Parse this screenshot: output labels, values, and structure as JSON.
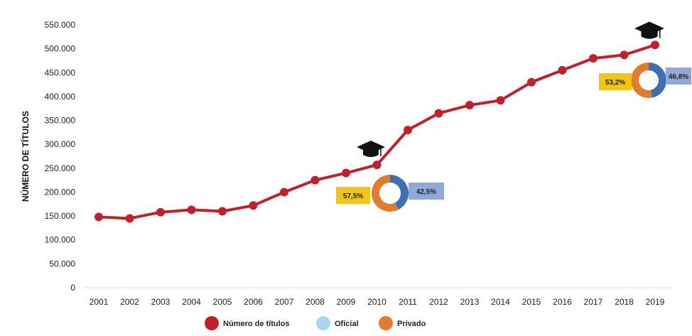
{
  "chart_data": {
    "type": "line",
    "title": "",
    "xlabel": "",
    "ylabel": "NÚMERO DE TÍTULOS",
    "categories": [
      "2001",
      "2002",
      "2003",
      "2004",
      "2005",
      "2006",
      "2007",
      "2008",
      "2009",
      "2010",
      "2011",
      "2012",
      "2013",
      "2014",
      "2015",
      "2016",
      "2017",
      "2018",
      "2019"
    ],
    "series": [
      {
        "name": "Número de títulos",
        "color": "#c0202a",
        "values": [
          148000,
          145000,
          158000,
          163000,
          160000,
          172000,
          200000,
          225000,
          240000,
          257000,
          330000,
          365000,
          382000,
          392000,
          430000,
          455000,
          480000,
          487000,
          508000
        ]
      }
    ],
    "ylim": [
      0,
      550000
    ],
    "yticks": [
      "0",
      "50.000",
      "100.000",
      "150.000",
      "200.000",
      "250.000",
      "300.000",
      "350.000",
      "400.000",
      "450.000",
      "500.000",
      "550.000"
    ],
    "legend": {
      "position": "bottom",
      "items": [
        {
          "label": "Número de títulos",
          "color": "#c0202a"
        },
        {
          "label": "Oficial",
          "color": "#a9d6ea"
        },
        {
          "label": "Privado",
          "color": "#e07b30"
        }
      ]
    },
    "annotations": [
      {
        "type": "donut",
        "year": "2010",
        "icon": "graduation-cap-icon",
        "oficial": 42.5,
        "privado": 57.5,
        "oficial_label": "42,5%",
        "privado_label": "57,5%",
        "oficial_color": "#3f6fb3",
        "privado_color": "#e07b30"
      },
      {
        "type": "donut",
        "year": "2019",
        "icon": "graduation-cap-icon",
        "oficial": 46.8,
        "privado": 53.2,
        "oficial_label": "46,8%",
        "privado_label": "53,2%",
        "oficial_color": "#3f6fb3",
        "privado_color": "#e07b30"
      }
    ]
  }
}
